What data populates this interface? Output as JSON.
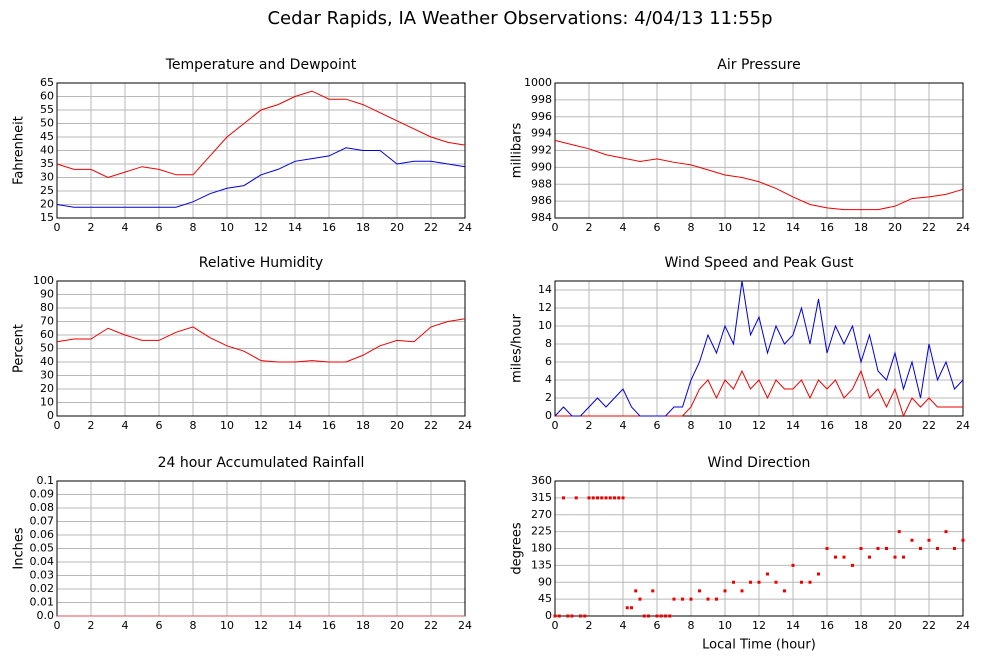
{
  "title": "Cedar Rapids, IA Weather Observations: 4/04/13 11:55p",
  "chart_data": [
    {
      "type": "line",
      "title": "Temperature and Dewpoint",
      "ylabel": "Fahrenheit",
      "x": [
        0,
        1,
        2,
        3,
        4,
        5,
        6,
        7,
        8,
        9,
        10,
        11,
        12,
        13,
        14,
        15,
        16,
        17,
        18,
        19,
        20,
        21,
        22,
        23,
        24
      ],
      "series": [
        {
          "color": "#ee0000",
          "values": [
            35,
            33,
            33,
            30,
            32,
            34,
            33,
            31,
            31,
            38,
            45,
            50,
            55,
            57,
            60,
            62,
            59,
            59,
            57,
            54,
            51,
            48,
            45,
            43,
            42
          ]
        },
        {
          "color": "#0000dd",
          "values": [
            20,
            19,
            19,
            19,
            19,
            19,
            19,
            19,
            21,
            24,
            26,
            27,
            31,
            33,
            36,
            37,
            38,
            41,
            40,
            40,
            35,
            36,
            36,
            35,
            34
          ]
        }
      ],
      "xlim": [
        0,
        24
      ],
      "ylim": [
        15,
        65
      ],
      "xticks": [
        0,
        2,
        4,
        6,
        8,
        10,
        12,
        14,
        16,
        18,
        20,
        22,
        24
      ],
      "yticks": [
        15,
        20,
        25,
        30,
        35,
        40,
        45,
        50,
        55,
        60,
        65
      ],
      "grid": true
    },
    {
      "type": "line",
      "title": "Air Pressure",
      "ylabel": "millibars",
      "x": [
        0,
        1,
        2,
        3,
        4,
        5,
        6,
        7,
        8,
        9,
        10,
        11,
        12,
        13,
        14,
        15,
        16,
        17,
        18,
        19,
        20,
        21,
        22,
        23,
        24
      ],
      "series": [
        {
          "color": "#ee0000",
          "values": [
            993.2,
            992.7,
            992.2,
            991.5,
            991.1,
            990.7,
            991.0,
            990.6,
            990.3,
            989.7,
            989.1,
            988.8,
            988.3,
            987.5,
            986.5,
            985.6,
            985.2,
            985.0,
            985.0,
            985.0,
            985.4,
            986.3,
            986.5,
            986.8,
            987.4
          ]
        }
      ],
      "xlim": [
        0,
        24
      ],
      "ylim": [
        984,
        1000
      ],
      "xticks": [
        0,
        2,
        4,
        6,
        8,
        10,
        12,
        14,
        16,
        18,
        20,
        22,
        24
      ],
      "yticks": [
        984,
        986,
        988,
        990,
        992,
        994,
        996,
        998,
        1000
      ],
      "grid": true
    },
    {
      "type": "line",
      "title": "Relative Humidity",
      "ylabel": "Percent",
      "x": [
        0,
        1,
        2,
        3,
        4,
        5,
        6,
        7,
        8,
        9,
        10,
        11,
        12,
        13,
        14,
        15,
        16,
        17,
        18,
        19,
        20,
        21,
        22,
        23,
        24
      ],
      "series": [
        {
          "color": "#ee0000",
          "values": [
            55,
            57,
            57,
            65,
            60,
            56,
            56,
            62,
            66,
            58,
            52,
            48,
            41,
            40,
            40,
            41,
            40,
            40,
            45,
            52,
            56,
            55,
            66,
            70,
            72
          ]
        }
      ],
      "xlim": [
        0,
        24
      ],
      "ylim": [
        0,
        100
      ],
      "xticks": [
        0,
        2,
        4,
        6,
        8,
        10,
        12,
        14,
        16,
        18,
        20,
        22,
        24
      ],
      "yticks": [
        0,
        10,
        20,
        30,
        40,
        50,
        60,
        70,
        80,
        90,
        100
      ],
      "grid": true
    },
    {
      "type": "line",
      "title": "Wind Speed and Peak Gust",
      "ylabel": "miles/hour",
      "x": [
        0,
        0.5,
        1,
        1.5,
        2,
        2.5,
        3,
        3.5,
        4,
        4.5,
        5,
        5.5,
        6,
        6.5,
        7,
        7.5,
        8,
        8.5,
        9,
        9.5,
        10,
        10.5,
        11,
        11.5,
        12,
        12.5,
        13,
        13.5,
        14,
        14.5,
        15,
        15.5,
        16,
        16.5,
        17,
        17.5,
        18,
        18.5,
        19,
        19.5,
        20,
        20.5,
        21,
        21.5,
        22,
        22.5,
        23,
        23.5,
        24
      ],
      "series": [
        {
          "color": "#ee0000",
          "values": [
            0,
            0,
            0,
            0,
            0,
            0,
            0,
            0,
            0,
            0,
            0,
            0,
            0,
            0,
            0,
            0,
            1,
            3,
            4,
            2,
            4,
            3,
            5,
            3,
            4,
            2,
            4,
            3,
            3,
            4,
            2,
            4,
            3,
            4,
            2,
            3,
            5,
            2,
            3,
            1,
            3,
            0,
            2,
            1,
            2,
            1,
            1,
            1,
            1
          ]
        },
        {
          "color": "#0000dd",
          "values": [
            0,
            1,
            0,
            0,
            1,
            2,
            1,
            2,
            3,
            1,
            0,
            0,
            0,
            0,
            1,
            1,
            4,
            6,
            9,
            7,
            10,
            8,
            15,
            9,
            11,
            7,
            10,
            8,
            9,
            12,
            8,
            13,
            7,
            10,
            8,
            10,
            6,
            9,
            5,
            4,
            7,
            3,
            6,
            2,
            8,
            4,
            6,
            3,
            4
          ]
        }
      ],
      "xlim": [
        0,
        24
      ],
      "ylim": [
        0,
        15
      ],
      "xticks": [
        0,
        2,
        4,
        6,
        8,
        10,
        12,
        14,
        16,
        18,
        20,
        22,
        24
      ],
      "yticks": [
        0,
        2,
        4,
        6,
        8,
        10,
        12,
        14
      ],
      "grid": true
    },
    {
      "type": "line",
      "title": "24 hour Accumulated Rainfall",
      "ylabel": "Inches",
      "x": [
        0,
        24
      ],
      "series": [
        {
          "color": "#e05060",
          "values": [
            0,
            0
          ]
        }
      ],
      "xlim": [
        0,
        24
      ],
      "ylim": [
        0,
        0.1
      ],
      "xticks": [
        0,
        2,
        4,
        6,
        8,
        10,
        12,
        14,
        16,
        18,
        20,
        22,
        24
      ],
      "yticks": [
        {
          "value": 0,
          "label": "0.0"
        },
        0.01,
        0.02,
        0.03,
        0.04,
        0.05,
        0.06,
        0.07,
        0.08,
        0.09,
        0.1
      ],
      "grid": true
    },
    {
      "type": "scatter",
      "title": "Wind Direction",
      "ylabel": "degrees",
      "xlabel": "Local Time (hour)",
      "x": [
        0,
        0.25,
        0.5,
        0.75,
        1,
        1.25,
        1.5,
        1.75,
        2,
        2.25,
        2.5,
        2.75,
        3,
        3.25,
        3.5,
        3.75,
        4,
        4.25,
        4.5,
        4.75,
        5,
        5.25,
        5.5,
        5.75,
        6,
        6.25,
        6.5,
        6.75,
        7,
        7.5,
        8,
        8.5,
        9,
        9.5,
        10,
        10.5,
        11,
        11.5,
        12,
        12.5,
        13,
        13.5,
        14,
        14.5,
        15,
        15.5,
        16,
        16.5,
        17,
        17.5,
        18,
        18.5,
        19,
        19.5,
        20,
        20.25,
        20.5,
        21,
        21.5,
        22,
        22.5,
        23,
        23.5,
        24
      ],
      "series": [
        {
          "color": "#ee0000",
          "values": [
            0,
            0,
            315,
            0,
            0,
            315,
            0,
            0,
            315,
            315,
            315,
            315,
            315,
            315,
            315,
            315,
            315,
            22,
            22,
            67,
            45,
            0,
            0,
            67,
            0,
            0,
            0,
            0,
            45,
            45,
            45,
            67,
            45,
            45,
            67,
            90,
            67,
            90,
            90,
            112,
            90,
            67,
            135,
            90,
            90,
            112,
            180,
            157,
            157,
            135,
            180,
            157,
            180,
            180,
            157,
            225,
            157,
            202,
            180,
            202,
            180,
            225,
            180,
            202
          ]
        }
      ],
      "xlim": [
        0,
        24
      ],
      "ylim": [
        0,
        360
      ],
      "xticks": [
        0,
        2,
        4,
        6,
        8,
        10,
        12,
        14,
        16,
        18,
        20,
        22,
        24
      ],
      "yticks": [
        0,
        45,
        90,
        135,
        180,
        225,
        270,
        315,
        360
      ],
      "grid": true
    }
  ]
}
